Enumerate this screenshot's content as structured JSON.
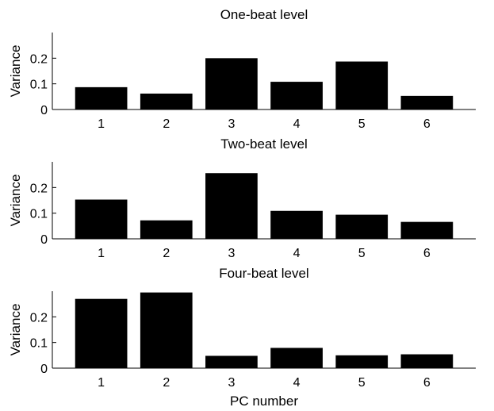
{
  "chart_data": [
    {
      "type": "bar",
      "title": "One-beat level",
      "xlabel": "",
      "ylabel": "Variance",
      "categories": [
        "1",
        "2",
        "3",
        "4",
        "5",
        "6"
      ],
      "values": [
        0.087,
        0.062,
        0.2,
        0.108,
        0.187,
        0.053
      ],
      "ylim": [
        0,
        0.3
      ],
      "yticks": [
        "0",
        "0.1",
        "0.2"
      ],
      "bar_color": "#000000",
      "grid": false
    },
    {
      "type": "bar",
      "title": "Two-beat level",
      "xlabel": "",
      "ylabel": "Variance",
      "categories": [
        "1",
        "2",
        "3",
        "4",
        "5",
        "6"
      ],
      "values": [
        0.153,
        0.072,
        0.256,
        0.109,
        0.094,
        0.066
      ],
      "ylim": [
        0,
        0.3
      ],
      "yticks": [
        "0",
        "0.1",
        "0.2"
      ],
      "bar_color": "#000000",
      "grid": false
    },
    {
      "type": "bar",
      "title": "Four-beat level",
      "xlabel": "PC number",
      "ylabel": "Variance",
      "categories": [
        "1",
        "2",
        "3",
        "4",
        "5",
        "6"
      ],
      "values": [
        0.27,
        0.295,
        0.048,
        0.079,
        0.05,
        0.054
      ],
      "ylim": [
        0,
        0.3
      ],
      "yticks": [
        "0",
        "0.1",
        "0.2"
      ],
      "bar_color": "#000000",
      "grid": false
    }
  ]
}
